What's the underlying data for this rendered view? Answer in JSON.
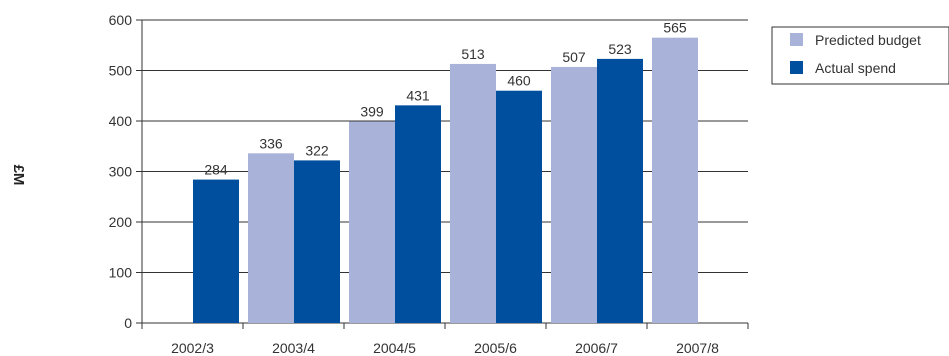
{
  "chart_data": {
    "type": "bar",
    "categories": [
      "2002/3",
      "2003/4",
      "2004/5",
      "2005/6",
      "2006/7",
      "2007/8"
    ],
    "series": [
      {
        "name": "Predicted budget",
        "color": "#a9b3d9",
        "values": [
          null,
          336,
          399,
          513,
          507,
          565
        ]
      },
      {
        "name": "Actual spend",
        "color": "#004f9e",
        "values": [
          284,
          322,
          431,
          460,
          523,
          null
        ]
      }
    ],
    "title": "",
    "xlabel": "",
    "ylabel": "£M",
    "ylim": [
      0,
      600
    ],
    "yticks": [
      0,
      100,
      200,
      300,
      400,
      500,
      600
    ],
    "grid": true,
    "legend_position": "top-right"
  }
}
